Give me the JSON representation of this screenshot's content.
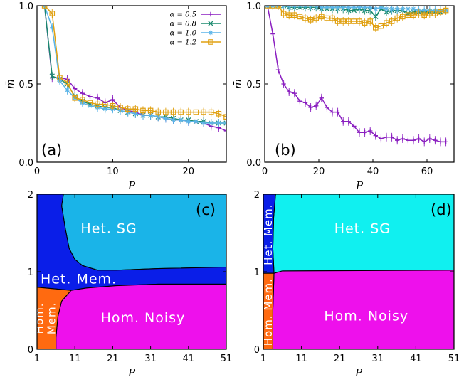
{
  "chart_data": [
    {
      "id": "a",
      "type": "line",
      "panel_label": "(a)",
      "xlabel": "P",
      "ylabel": "m̄",
      "xlim": [
        0,
        25
      ],
      "ylim": [
        0.0,
        1.0
      ],
      "xticks": [
        0,
        10,
        20
      ],
      "yticks": [
        0.0,
        0.5,
        1.0
      ],
      "ytick_labels": [
        "0.0",
        "0.5",
        "1.0"
      ],
      "legend_position": "top-right",
      "series": [
        {
          "name": "α = 0.5",
          "color": "#8a1ec0",
          "marker": "plus",
          "x": [
            1,
            2,
            3,
            4,
            5,
            6,
            7,
            8,
            9,
            10,
            11,
            12,
            13,
            14,
            15,
            16,
            17,
            18,
            19,
            20,
            21,
            22,
            23,
            24,
            25
          ],
          "y": [
            1.0,
            0.54,
            0.54,
            0.53,
            0.47,
            0.44,
            0.42,
            0.41,
            0.38,
            0.4,
            0.35,
            0.33,
            0.32,
            0.3,
            0.3,
            0.29,
            0.28,
            0.27,
            0.27,
            0.26,
            0.26,
            0.25,
            0.23,
            0.22,
            0.2
          ]
        },
        {
          "name": "α = 0.8",
          "color": "#1a8a6e",
          "marker": "x",
          "x": [
            1,
            2,
            3,
            4,
            5,
            6,
            7,
            8,
            9,
            10,
            11,
            12,
            13,
            14,
            15,
            16,
            17,
            18,
            19,
            20,
            21,
            22,
            23,
            24,
            25
          ],
          "y": [
            1.0,
            0.55,
            0.53,
            0.5,
            0.42,
            0.39,
            0.37,
            0.36,
            0.35,
            0.35,
            0.33,
            0.32,
            0.31,
            0.3,
            0.3,
            0.29,
            0.29,
            0.28,
            0.27,
            0.27,
            0.26,
            0.26,
            0.25,
            0.25,
            0.25
          ]
        },
        {
          "name": "α = 1.0",
          "color": "#5ab4e8",
          "marker": "star",
          "x": [
            1,
            2,
            3,
            4,
            5,
            6,
            7,
            8,
            9,
            10,
            11,
            12,
            13,
            14,
            15,
            16,
            17,
            18,
            19,
            20,
            21,
            22,
            23,
            24,
            25
          ],
          "y": [
            1.0,
            0.86,
            0.52,
            0.46,
            0.41,
            0.38,
            0.36,
            0.35,
            0.34,
            0.34,
            0.33,
            0.32,
            0.31,
            0.3,
            0.3,
            0.29,
            0.28,
            0.27,
            0.27,
            0.26,
            0.26,
            0.25,
            0.25,
            0.25,
            0.25
          ]
        },
        {
          "name": "α = 1.2",
          "color": "#e0a010",
          "marker": "square",
          "x": [
            1,
            2,
            3,
            4,
            5,
            6,
            7,
            8,
            9,
            10,
            11,
            12,
            13,
            14,
            15,
            16,
            17,
            18,
            19,
            20,
            21,
            22,
            23,
            24,
            25
          ],
          "y": [
            1.0,
            0.95,
            0.54,
            0.51,
            0.41,
            0.4,
            0.38,
            0.37,
            0.37,
            0.36,
            0.35,
            0.34,
            0.34,
            0.33,
            0.33,
            0.32,
            0.32,
            0.32,
            0.32,
            0.32,
            0.32,
            0.32,
            0.32,
            0.31,
            0.29
          ]
        }
      ]
    },
    {
      "id": "b",
      "type": "line",
      "panel_label": "(b)",
      "xlabel": "P",
      "ylabel": "m̄",
      "xlim": [
        0,
        70
      ],
      "ylim": [
        0.0,
        1.0
      ],
      "xticks": [
        0,
        20,
        40,
        60
      ],
      "yticks": [
        0.0,
        0.5,
        1.0
      ],
      "ytick_labels": [
        "0.0",
        "0.5",
        "1.0"
      ],
      "series": [
        {
          "color": "#8a1ec0",
          "marker": "plus",
          "x": [
            1,
            3,
            5,
            7,
            9,
            11,
            13,
            15,
            17,
            19,
            21,
            23,
            25,
            27,
            29,
            31,
            33,
            35,
            37,
            39,
            41,
            43,
            45,
            47,
            49,
            51,
            53,
            55,
            57,
            59,
            61,
            63,
            65,
            67
          ],
          "y": [
            1.0,
            0.82,
            0.59,
            0.5,
            0.45,
            0.44,
            0.39,
            0.38,
            0.35,
            0.36,
            0.41,
            0.35,
            0.32,
            0.32,
            0.26,
            0.26,
            0.23,
            0.19,
            0.19,
            0.2,
            0.17,
            0.15,
            0.16,
            0.16,
            0.14,
            0.15,
            0.14,
            0.14,
            0.15,
            0.13,
            0.15,
            0.14,
            0.13,
            0.13
          ]
        },
        {
          "color": "#1a8a6e",
          "marker": "x",
          "x": [
            1,
            3,
            5,
            7,
            9,
            11,
            13,
            15,
            17,
            19,
            21,
            23,
            25,
            27,
            29,
            31,
            33,
            35,
            37,
            39,
            41,
            43,
            45,
            47,
            49,
            51,
            53,
            55,
            57,
            59,
            61,
            63,
            65,
            67
          ],
          "y": [
            1.0,
            1.0,
            1.0,
            1.0,
            0.99,
            0.99,
            0.99,
            0.99,
            0.99,
            0.99,
            0.98,
            0.98,
            0.98,
            0.98,
            0.98,
            0.97,
            0.97,
            0.98,
            0.97,
            0.97,
            0.93,
            0.98,
            0.96,
            0.97,
            0.97,
            0.97,
            0.95,
            0.96,
            0.96,
            0.96,
            0.96,
            0.96,
            0.96,
            0.97
          ]
        },
        {
          "color": "#5ab4e8",
          "marker": "star",
          "x": [
            1,
            3,
            5,
            7,
            9,
            11,
            13,
            15,
            17,
            19,
            21,
            23,
            25,
            27,
            29,
            31,
            33,
            35,
            37,
            39,
            41,
            43,
            45,
            47,
            49,
            51,
            53,
            55,
            57,
            59,
            61,
            63,
            65,
            67
          ],
          "y": [
            1.0,
            1.0,
            1.0,
            1.0,
            1.0,
            1.0,
            1.0,
            1.0,
            1.0,
            1.0,
            0.99,
            0.99,
            0.99,
            0.99,
            0.99,
            0.99,
            0.99,
            0.99,
            0.99,
            0.99,
            0.98,
            0.99,
            0.98,
            0.98,
            0.98,
            0.98,
            0.98,
            0.98,
            0.97,
            0.97,
            0.97,
            0.97,
            0.97,
            0.97
          ]
        },
        {
          "color": "#e0a010",
          "marker": "square",
          "x": [
            1,
            3,
            5,
            7,
            9,
            11,
            13,
            15,
            17,
            19,
            21,
            23,
            25,
            27,
            29,
            31,
            33,
            35,
            37,
            39,
            41,
            43,
            45,
            47,
            49,
            51,
            53,
            55,
            57,
            59,
            61,
            63,
            65,
            67
          ],
          "y": [
            1.0,
            1.0,
            1.0,
            0.95,
            0.94,
            0.94,
            0.93,
            0.92,
            0.91,
            0.92,
            0.93,
            0.92,
            0.92,
            0.9,
            0.9,
            0.9,
            0.9,
            0.9,
            0.89,
            0.9,
            0.86,
            0.87,
            0.89,
            0.9,
            0.92,
            0.93,
            0.94,
            0.94,
            0.95,
            0.94,
            0.95,
            0.95,
            0.96,
            0.97
          ]
        }
      ]
    },
    {
      "id": "c",
      "type": "area",
      "panel_label": "(c)",
      "xlabel": "P",
      "xlim": [
        1,
        51
      ],
      "ylim": [
        0,
        2
      ],
      "xticks": [
        1,
        11,
        21,
        31,
        41,
        51
      ],
      "yticks": [
        0,
        1,
        2
      ],
      "regions": [
        {
          "name": "Het. SG",
          "color": "#1ab4e8",
          "polygon": [
            [
              8,
              2
            ],
            [
              51,
              2
            ],
            [
              51,
              1.06
            ],
            [
              33,
              1.04
            ],
            [
              22,
              1.02
            ],
            [
              17,
              1.02
            ],
            [
              13,
              1.08
            ],
            [
              11,
              1.16
            ],
            [
              9.5,
              1.3
            ],
            [
              8.5,
              1.55
            ],
            [
              7.5,
              1.85
            ],
            [
              7.5,
              2
            ]
          ]
        },
        {
          "name": "Het. Mem.",
          "color": "#0a1ee8",
          "polygon": [
            [
              1,
              2
            ],
            [
              8,
              2
            ],
            [
              7.5,
              1.85
            ],
            [
              8.5,
              1.55
            ],
            [
              9.5,
              1.3
            ],
            [
              11,
              1.16
            ],
            [
              13,
              1.08
            ],
            [
              17,
              1.02
            ],
            [
              22,
              1.02
            ],
            [
              33,
              1.04
            ],
            [
              51,
              1.06
            ],
            [
              51,
              0.84
            ],
            [
              33,
              0.84
            ],
            [
              22,
              0.82
            ],
            [
              14,
              0.79
            ],
            [
              10,
              0.76
            ],
            [
              1,
              0.8
            ]
          ]
        },
        {
          "name": "Hom. Noisy",
          "color": "#ee10ec",
          "polygon": [
            [
              51,
              0.84
            ],
            [
              33,
              0.84
            ],
            [
              22,
              0.82
            ],
            [
              14,
              0.79
            ],
            [
              10,
              0.76
            ],
            [
              7.5,
              0.62
            ],
            [
              6.5,
              0.42
            ],
            [
              6,
              0.15
            ],
            [
              6,
              0
            ],
            [
              51,
              0
            ]
          ]
        },
        {
          "name": "Hom. Mem.",
          "color": "#ff6a10",
          "polygon": [
            [
              1,
              0.8
            ],
            [
              10,
              0.76
            ],
            [
              7.5,
              0.62
            ],
            [
              6.5,
              0.42
            ],
            [
              6,
              0.15
            ],
            [
              6,
              0
            ],
            [
              1,
              0
            ]
          ]
        }
      ]
    },
    {
      "id": "d",
      "type": "area",
      "panel_label": "(d)",
      "xlabel": "P",
      "xlim": [
        1,
        51
      ],
      "ylim": [
        0,
        2
      ],
      "xticks": [
        1,
        11,
        21,
        31,
        41,
        51
      ],
      "yticks": [
        0,
        1,
        2
      ],
      "regions": [
        {
          "name": "Het. SG",
          "color": "#10f0f0",
          "polygon": [
            [
              4.2,
              2
            ],
            [
              51,
              2
            ],
            [
              51,
              1.02
            ],
            [
              6,
              1.01
            ],
            [
              3.8,
              0.98
            ],
            [
              3.5,
              1.3
            ],
            [
              3.7,
              1.7
            ]
          ]
        },
        {
          "name": "Het. Mem.",
          "color": "#0a1ee8",
          "polygon": [
            [
              1,
              2
            ],
            [
              4.2,
              2
            ],
            [
              3.7,
              1.7
            ],
            [
              3.5,
              1.3
            ],
            [
              3.8,
              0.98
            ],
            [
              1,
              0.98
            ]
          ]
        },
        {
          "name": "Hom. Noisy",
          "color": "#ee10ec",
          "polygon": [
            [
              3.8,
              0.98
            ],
            [
              6,
              1.01
            ],
            [
              51,
              1.02
            ],
            [
              51,
              0
            ],
            [
              3.5,
              0
            ],
            [
              3.5,
              0.5
            ]
          ]
        },
        {
          "name": "Hom. Mem.",
          "color": "#ff6a10",
          "polygon": [
            [
              1,
              0.98
            ],
            [
              3.8,
              0.98
            ],
            [
              3.5,
              0.5
            ],
            [
              3.5,
              0
            ],
            [
              1,
              0
            ]
          ]
        }
      ]
    }
  ]
}
